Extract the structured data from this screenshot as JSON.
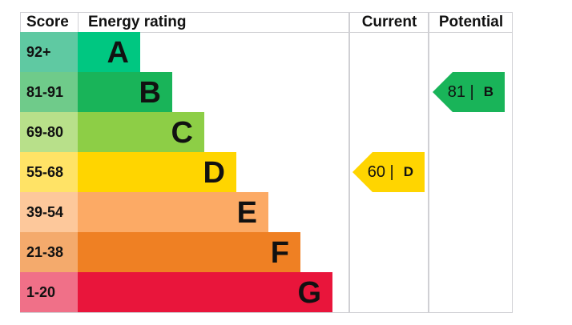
{
  "chart_data": {
    "type": "table",
    "headers": {
      "score": "Score",
      "rating": "Energy rating",
      "current": "Current",
      "potential": "Potential"
    },
    "bands": [
      {
        "score": "92+",
        "letter": "A",
        "color": "#00c781",
        "score_color": "#5fc9a2"
      },
      {
        "score": "81-91",
        "letter": "B",
        "color": "#19b459",
        "score_color": "#6fcb8a"
      },
      {
        "score": "69-80",
        "letter": "C",
        "color": "#8dce46",
        "score_color": "#b8e08a"
      },
      {
        "score": "55-68",
        "letter": "D",
        "color": "#ffd500",
        "score_color": "#ffe366"
      },
      {
        "score": "39-54",
        "letter": "E",
        "color": "#fcaa65",
        "score_color": "#fdc89b"
      },
      {
        "score": "21-38",
        "letter": "F",
        "color": "#ef8023",
        "score_color": "#f4aa6c"
      },
      {
        "score": "1-20",
        "letter": "G",
        "color": "#e9153b",
        "score_color": "#f07088"
      }
    ],
    "current": {
      "value": "60",
      "separator": "|",
      "letter": "D",
      "color": "#ffd500"
    },
    "potential": {
      "value": "81",
      "separator": "|",
      "letter": "B",
      "color": "#19b459"
    }
  }
}
